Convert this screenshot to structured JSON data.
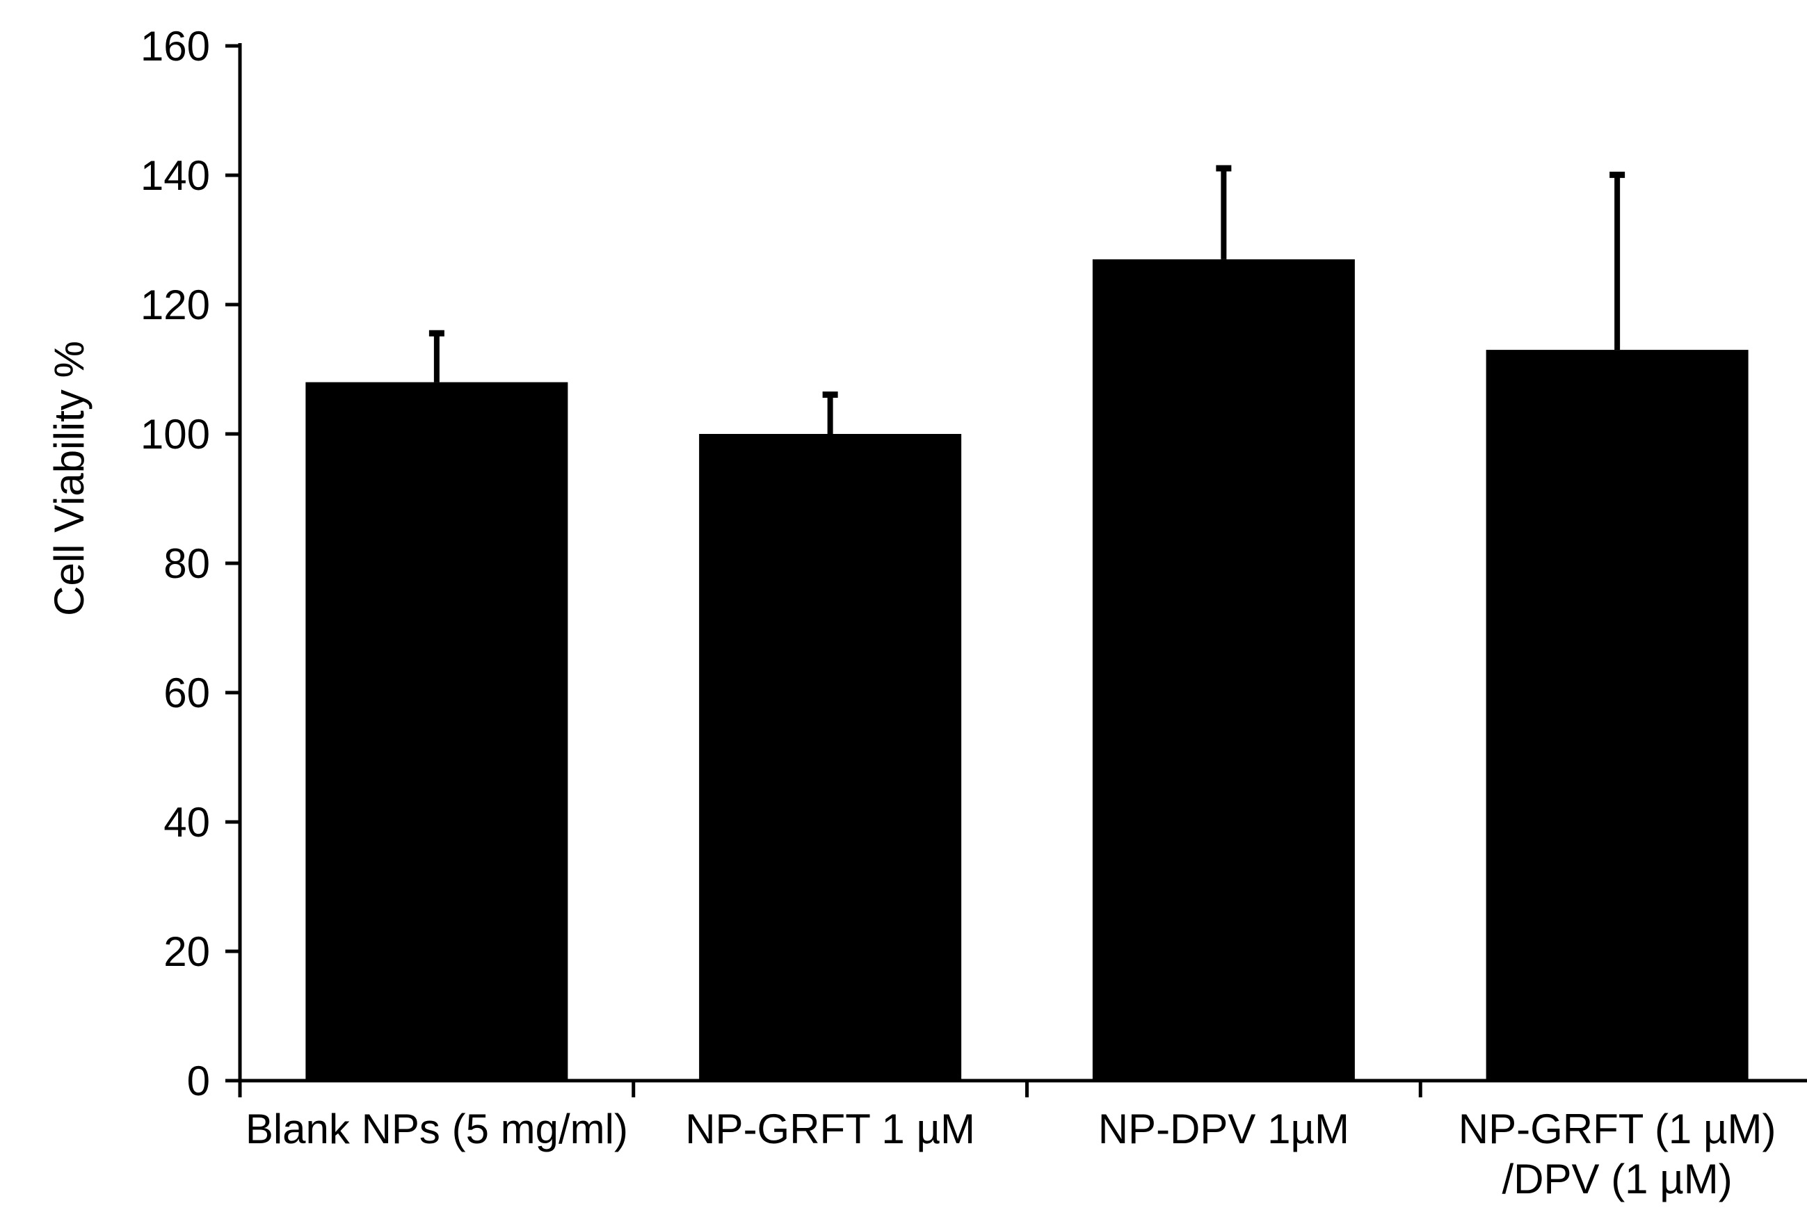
{
  "chart_data": {
    "type": "bar",
    "title": "",
    "xlabel": "",
    "ylabel": "Cell Viability %",
    "ylim": [
      0,
      160
    ],
    "y_ticks": [
      0,
      20,
      40,
      60,
      80,
      100,
      120,
      140,
      160
    ],
    "grid": false,
    "legend": "none",
    "bar_color": "#000000",
    "error_bar_color": "#000000",
    "categories": [
      "Blank NPs (5 mg/ml)",
      "NP-GRFT 1 µM",
      "NP-DPV 1µM",
      "NP-GRFT (1 µM) /DPV (1 µM)"
    ],
    "category_label_lines": [
      [
        "Blank NPs (5 mg/ml)"
      ],
      [
        "NP-GRFT 1 µM"
      ],
      [
        "NP-DPV 1µM"
      ],
      [
        "NP-GRFT (1 µM)",
        "/DPV (1 µM)"
      ]
    ],
    "values": [
      108,
      100,
      127,
      113
    ],
    "errors_plus": [
      8,
      6.5,
      14.5,
      27.5
    ]
  }
}
